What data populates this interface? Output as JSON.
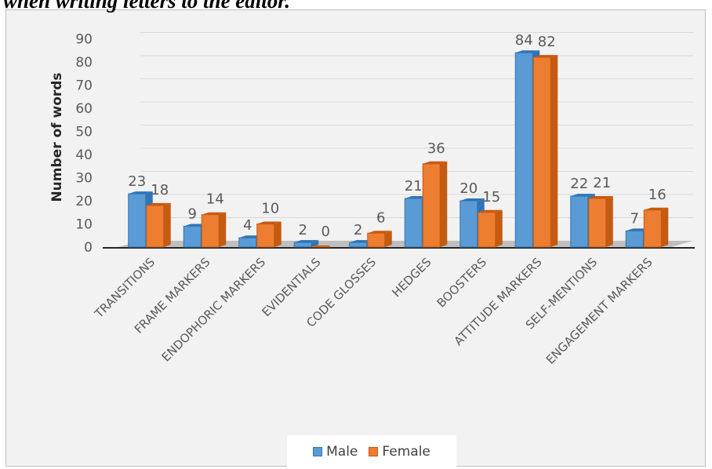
{
  "caption": "when writing letters to the editor.",
  "colors": {
    "male": "#5b9bd5",
    "male_side": "#2e75b6",
    "female": "#ed7d31",
    "female_side": "#c55a11",
    "grid": "#d9d9d9",
    "text": "#595959"
  },
  "chart_data": {
    "type": "bar",
    "subtype": "3d-clustered-column",
    "title": "",
    "xlabel": "",
    "ylabel": "Number of words",
    "ylim": [
      0,
      90
    ],
    "yticks": [
      0,
      10,
      20,
      30,
      40,
      50,
      60,
      70,
      80,
      90
    ],
    "grid": true,
    "legend_position": "bottom",
    "categories": [
      "TRANSITIONS",
      "FRAME MARKERS",
      "ENDOPHORIC MARKERS",
      "EVIDENTIALS",
      "CODE GLOSSES",
      "HEDGES",
      "BOOSTERS",
      "ATTITUDE MARKERS",
      "SELF-MENTIONS",
      "ENGAGEMENT MARKERS"
    ],
    "series": [
      {
        "name": "Male",
        "values": [
          23,
          9,
          4,
          2,
          2,
          21,
          20,
          84,
          22,
          7
        ]
      },
      {
        "name": "Female",
        "values": [
          18,
          14,
          10,
          0,
          6,
          36,
          15,
          82,
          21,
          16
        ]
      }
    ]
  }
}
